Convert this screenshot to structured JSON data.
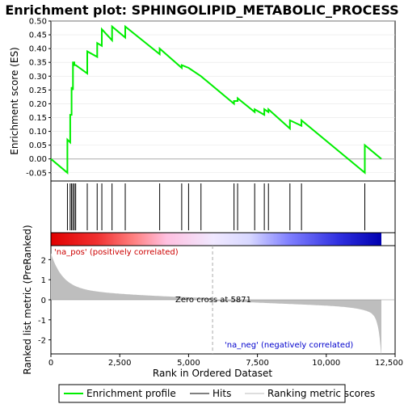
{
  "chart_data": {
    "type": "line",
    "title": "Enrichment plot: SPHINGOLIPID_METABOLIC_PROCESS",
    "top_panel": {
      "ylabel": "Enrichment score (ES)",
      "ylim": [
        -0.08,
        0.5
      ],
      "yticks": [
        "-0.05",
        "0.00",
        "0.05",
        "0.10",
        "0.15",
        "0.20",
        "0.25",
        "0.30",
        "0.35",
        "0.40",
        "0.45",
        "0.50"
      ],
      "ytick_values": [
        -0.05,
        0.0,
        0.05,
        0.1,
        0.15,
        0.2,
        0.25,
        0.3,
        0.35,
        0.4,
        0.45,
        0.5
      ],
      "grid": true,
      "series": [
        {
          "name": "Enrichment profile",
          "color": "#00ee00",
          "x": [
            0,
            600,
            600,
            700,
            700,
            750,
            750,
            800,
            800,
            850,
            850,
            900,
            900,
            1320,
            1320,
            1680,
            1680,
            1850,
            1850,
            2220,
            2220,
            2700,
            2700,
            3950,
            3950,
            4750,
            4750,
            5000,
            5000,
            5450,
            6650,
            6650,
            6780,
            6780,
            7400,
            7400,
            7750,
            7750,
            7900,
            7900,
            8680,
            8680,
            9100,
            9100,
            11400,
            11400,
            12000
          ],
          "y": [
            0.0,
            -0.05,
            0.07,
            0.06,
            0.16,
            0.16,
            0.26,
            0.25,
            0.35,
            0.35,
            0.34,
            0.34,
            0.34,
            0.31,
            0.39,
            0.37,
            0.42,
            0.41,
            0.47,
            0.43,
            0.48,
            0.44,
            0.48,
            0.38,
            0.4,
            0.33,
            0.34,
            0.33,
            0.33,
            0.3,
            0.2,
            0.21,
            0.21,
            0.22,
            0.17,
            0.18,
            0.16,
            0.18,
            0.17,
            0.18,
            0.11,
            0.14,
            0.12,
            0.14,
            -0.05,
            0.05,
            0.0
          ]
        }
      ]
    },
    "hits": [
      600,
      700,
      750,
      800,
      850,
      900,
      1320,
      1680,
      1850,
      2220,
      2700,
      3950,
      4750,
      5000,
      5450,
      6650,
      6780,
      7400,
      7750,
      7900,
      8680,
      9100,
      11400
    ],
    "bottom_panel": {
      "ylabel": "Ranked list metric (PreRanked)",
      "xlabel": "Rank in Ordered Dataset",
      "ylim": [
        -2.7,
        2.7
      ],
      "yticks": [
        "-2",
        "-1",
        "0",
        "1",
        "2"
      ],
      "ytick_values": [
        -2,
        -1,
        0,
        1,
        2
      ],
      "zero_cross_label": "Zero cross at 5871",
      "zero_cross_rank": 5871,
      "pos_label": "'na_pos' (positively correlated)",
      "neg_label": "'na_neg' (negatively correlated)",
      "pos_color": "#cc0000",
      "neg_color": "#0000cc"
    },
    "xlim": [
      0,
      12500
    ],
    "xticks": [
      "0",
      "2,500",
      "5,000",
      "7,500",
      "10,000",
      "12,500"
    ],
    "xtick_values": [
      0,
      2500,
      5000,
      7500,
      10000,
      12500
    ],
    "n_genes": 12000,
    "legend": {
      "placement": "bottom",
      "entries": [
        "Enrichment profile",
        "Hits",
        "Ranking metric scores"
      ]
    }
  }
}
